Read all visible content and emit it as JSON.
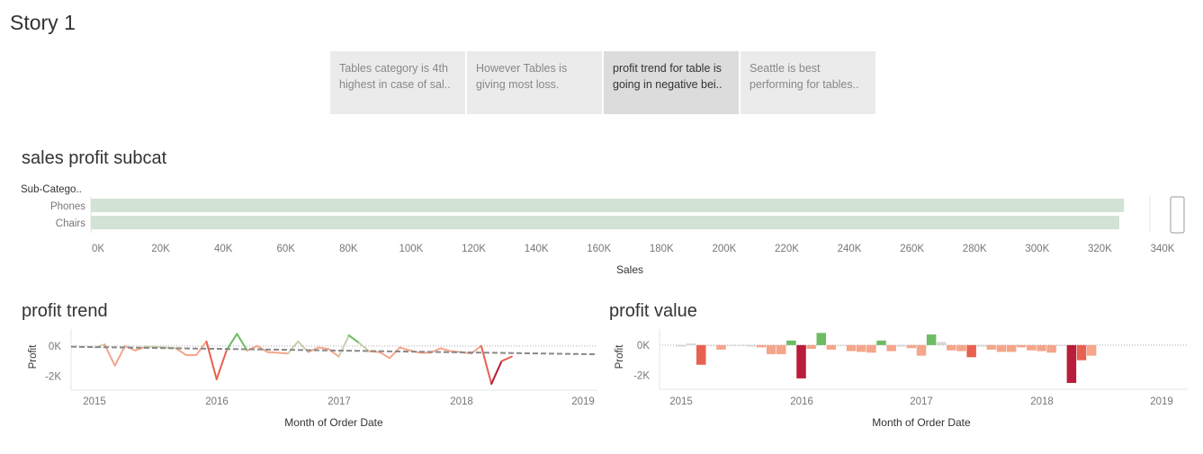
{
  "story": {
    "title": "Story 1",
    "points": [
      {
        "line1": "Tables category is 4th",
        "line2": "highest in case of sal..",
        "active": false
      },
      {
        "line1": "However Tables is",
        "line2": "giving most loss.",
        "active": false
      },
      {
        "line1": "profit trend for table is",
        "line2": "going in negative bei..",
        "active": true
      },
      {
        "line1": "Seattle is best",
        "line2": "performing for tables..",
        "active": false
      }
    ]
  },
  "colors": {
    "bar_fill": "#d2e2d4",
    "positive": "#6dbb63",
    "negative_light": "#f4a58a",
    "negative": "#e8604f",
    "negative_dark": "#b81d3a",
    "neutral": "#d6d6d6",
    "trend": "#888888"
  },
  "chart_data": [
    {
      "type": "bar",
      "title": "sales profit subcat",
      "orientation": "horizontal",
      "row_header": "Sub-Catego..",
      "categories": [
        "Phones",
        "Chairs"
      ],
      "values": [
        330000,
        328500
      ],
      "xlabel": "Sales",
      "xlim": [
        0,
        340000
      ],
      "xticks": [
        "0K",
        "20K",
        "40K",
        "60K",
        "80K",
        "100K",
        "120K",
        "140K",
        "160K",
        "180K",
        "200K",
        "220K",
        "240K",
        "260K",
        "280K",
        "300K",
        "320K",
        "340K"
      ],
      "grid": false
    },
    {
      "type": "line",
      "title": "profit trend",
      "xlabel": "Month of Order Date",
      "ylabel": "Profit",
      "x_start": "2015-01",
      "xticks": [
        "2015",
        "2016",
        "2017",
        "2018",
        "2019"
      ],
      "yticks": [
        "0K",
        "-2K"
      ],
      "ylim": [
        -2800,
        1000
      ],
      "values": [
        -100,
        100,
        -1300,
        0,
        -300,
        -50,
        -50,
        -100,
        -150,
        -600,
        -600,
        300,
        -2200,
        -250,
        800,
        -300,
        0,
        -400,
        -450,
        -500,
        300,
        -400,
        -100,
        -200,
        -700,
        700,
        200,
        -350,
        -400,
        -800,
        -100,
        -300,
        -450,
        -450,
        -150,
        -350,
        -400,
        -500,
        0,
        -2500,
        -1000,
        -700
      ],
      "trend_line": {
        "style": "dashed",
        "start": -50,
        "end": -550
      }
    },
    {
      "type": "bar",
      "title": "profit value",
      "xlabel": "Month of Order Date",
      "ylabel": "Profit",
      "x_start": "2015-01",
      "xticks": [
        "2015",
        "2016",
        "2017",
        "2018",
        "2019"
      ],
      "yticks": [
        "0K",
        "-2K"
      ],
      "ylim": [
        -2800,
        1000
      ],
      "values": [
        -100,
        100,
        -1300,
        0,
        -300,
        -50,
        -50,
        -100,
        -150,
        -600,
        -600,
        300,
        -2200,
        -250,
        800,
        -300,
        0,
        -400,
        -450,
        -500,
        300,
        -400,
        -100,
        -200,
        -700,
        700,
        200,
        -350,
        -400,
        -800,
        -100,
        -300,
        -450,
        -450,
        -150,
        -350,
        -400,
        -500,
        0,
        -2500,
        -1000,
        -700
      ]
    }
  ]
}
